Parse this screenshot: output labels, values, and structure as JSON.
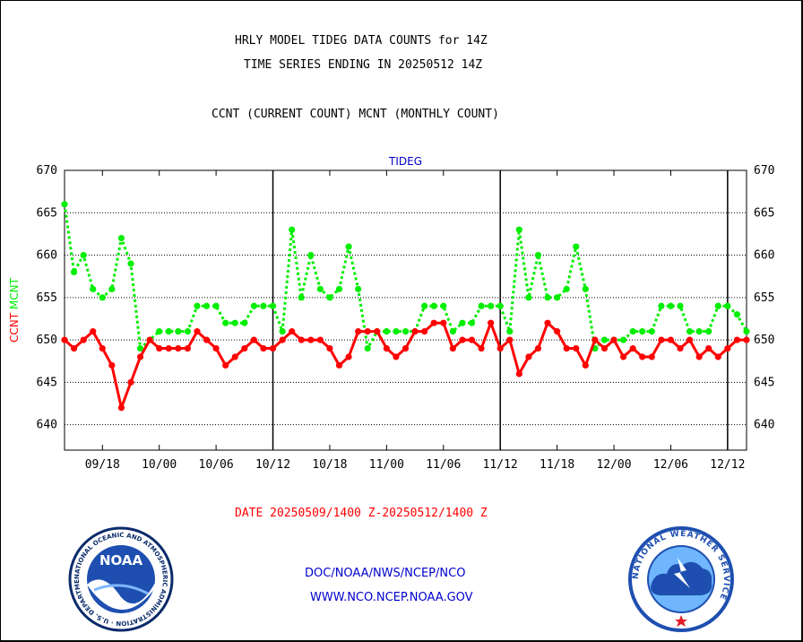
{
  "header": {
    "title_line1": "HRLY MODEL TIDEG DATA COUNTS for 14Z",
    "title_line2": "TIME SERIES ENDING IN 20250512 14Z",
    "subtitle": "CCNT (CURRENT COUNT) MCNT (MONTHLY COUNT)"
  },
  "footer": {
    "date_range": "DATE 20250509/1400 Z-20250512/1400 Z",
    "org_path": "DOC/NOAA/NWS/NCEP/NCO",
    "website": "WWW.NCO.NCEP.NOAA.GOV"
  },
  "logos": {
    "noaa_text": "NOAA",
    "noaa_ring": "NATIONAL OCEANIC AND ATMOSPHERIC ADMINISTRATION · U.S. DEPARTMENT OF COMMERCE",
    "nws_ring": "NATIONAL WEATHER SERVICE"
  },
  "colors": {
    "ccnt": "#ff0000",
    "mcnt": "#00ee00",
    "header_text": "#000000",
    "footer_date": "#ff0000",
    "footer_links": "#0000cc",
    "plot_title": "#0000cc"
  },
  "chart_data": {
    "type": "line",
    "title": "TIDEG",
    "ylabel_series": [
      "CCNT",
      "MCNT"
    ],
    "ylim": [
      637,
      670
    ],
    "yticks": [
      640,
      645,
      650,
      655,
      660,
      665,
      670
    ],
    "grid": true,
    "grid_style": "dotted horizontal",
    "xlim_hours": [
      0,
      72
    ],
    "xtick_labels": [
      "09/18",
      "10/00",
      "10/06",
      "10/12",
      "10/18",
      "11/00",
      "11/06",
      "11/12",
      "11/18",
      "12/00",
      "12/06",
      "12/12"
    ],
    "xtick_hours": [
      4,
      10,
      16,
      22,
      28,
      34,
      40,
      46,
      52,
      58,
      64,
      70
    ],
    "day_boundaries_hours": [
      22,
      46,
      70
    ],
    "x_hours": [
      0,
      1,
      2,
      3,
      4,
      5,
      6,
      7,
      8,
      9,
      10,
      11,
      12,
      13,
      14,
      15,
      16,
      17,
      18,
      19,
      20,
      21,
      22,
      23,
      24,
      25,
      26,
      27,
      28,
      29,
      30,
      31,
      32,
      33,
      34,
      35,
      36,
      37,
      38,
      39,
      40,
      41,
      42,
      43,
      44,
      45,
      46,
      47,
      48,
      49,
      50,
      51,
      52,
      53,
      54,
      55,
      56,
      57,
      58,
      59,
      60,
      61,
      62,
      63,
      64,
      65,
      66,
      67,
      68,
      69,
      70,
      71,
      72
    ],
    "series": [
      {
        "name": "CCNT",
        "color": "#ff0000",
        "style": "solid",
        "values": [
          650,
          649,
          650,
          651,
          649,
          647,
          642,
          645,
          648,
          650,
          649,
          649,
          649,
          649,
          651,
          650,
          649,
          647,
          648,
          649,
          650,
          649,
          649,
          650,
          651,
          650,
          650,
          650,
          649,
          647,
          648,
          651,
          651,
          651,
          649,
          648,
          649,
          651,
          651,
          652,
          652,
          649,
          650,
          650,
          649,
          652,
          649,
          650,
          646,
          648,
          649,
          652,
          651,
          649,
          649,
          647,
          650,
          649,
          650,
          648,
          649,
          648,
          648,
          650,
          650,
          649,
          650,
          648,
          649,
          648,
          649,
          650,
          650
        ]
      },
      {
        "name": "MCNT",
        "color": "#00ee00",
        "style": "dotted",
        "values": [
          666,
          658,
          660,
          656,
          655,
          656,
          662,
          659,
          649,
          650,
          651,
          651,
          651,
          651,
          654,
          654,
          654,
          652,
          652,
          652,
          654,
          654,
          654,
          651,
          663,
          655,
          660,
          656,
          655,
          656,
          661,
          656,
          649,
          651,
          651,
          651,
          651,
          651,
          654,
          654,
          654,
          651,
          652,
          652,
          654,
          654,
          654,
          651,
          663,
          655,
          660,
          655,
          655,
          656,
          661,
          656,
          649,
          650,
          650,
          650,
          651,
          651,
          651,
          654,
          654,
          654,
          651,
          651,
          651,
          654,
          654,
          653,
          651
        ]
      }
    ]
  }
}
